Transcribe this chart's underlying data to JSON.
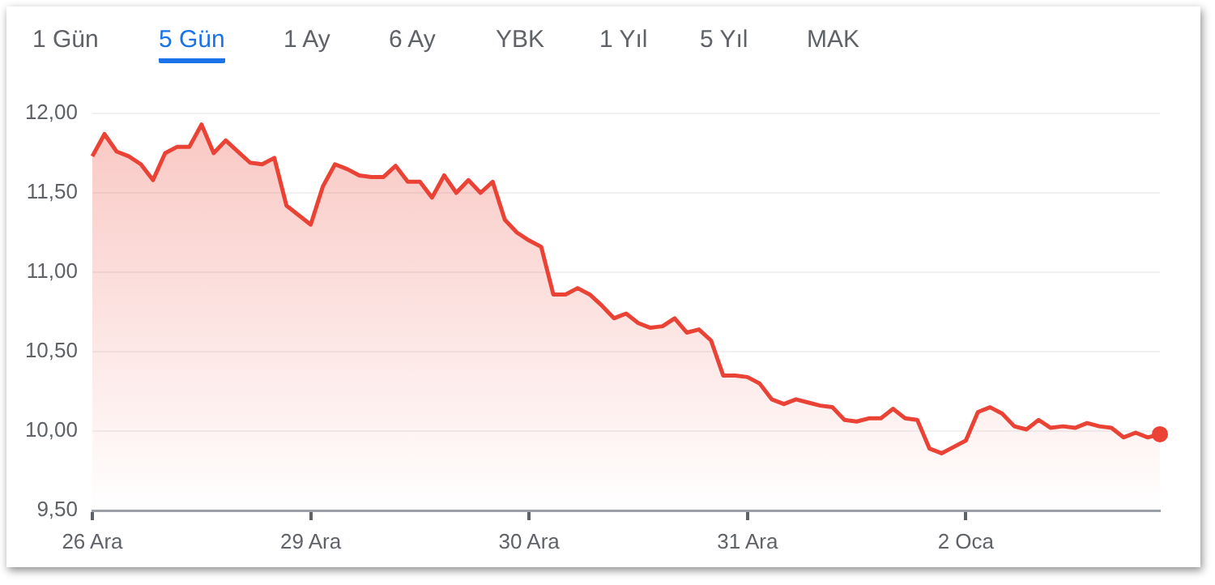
{
  "chart_data": {
    "type": "area",
    "annotations": [
      "1 Gün",
      "5 Gün",
      "1 Ay",
      "6 Ay",
      "YBK",
      "1 Yıl",
      "5 Yıl",
      "MAK"
    ],
    "categories": [
      "26 Ara",
      null,
      null,
      null,
      null,
      null,
      null,
      null,
      null,
      null,
      null,
      null,
      null,
      null,
      null,
      null,
      null,
      null,
      "29 Ara",
      null,
      null,
      null,
      null,
      null,
      null,
      null,
      null,
      null,
      null,
      null,
      null,
      null,
      null,
      null,
      null,
      null,
      "30 Ara",
      null,
      null,
      null,
      null,
      null,
      null,
      null,
      null,
      null,
      null,
      null,
      null,
      null,
      null,
      null,
      null,
      null,
      "31 Ara",
      null,
      null,
      null,
      null,
      null,
      null,
      null,
      null,
      null,
      null,
      null,
      null,
      null,
      null,
      null,
      null,
      null,
      "2 Oca",
      null,
      null,
      null,
      null,
      null,
      null,
      null,
      null,
      null,
      null,
      null,
      null,
      null,
      null,
      null,
      null
    ],
    "series": [
      {
        "color": "#ea4335",
        "values": [
          11.73,
          11.87,
          11.76,
          11.73,
          11.68,
          11.58,
          11.75,
          11.79,
          11.79,
          11.93,
          11.75,
          11.83,
          11.76,
          11.69,
          11.68,
          11.72,
          11.42,
          11.36,
          11.3,
          11.54,
          11.68,
          11.65,
          11.61,
          11.6,
          11.6,
          11.67,
          11.57,
          11.57,
          11.47,
          11.61,
          11.5,
          11.58,
          11.5,
          11.57,
          11.33,
          11.25,
          11.2,
          11.16,
          10.86,
          10.86,
          10.9,
          10.86,
          10.79,
          10.71,
          10.74,
          10.68,
          10.65,
          10.66,
          10.71,
          10.62,
          10.64,
          10.57,
          10.35,
          10.35,
          10.34,
          10.3,
          10.2,
          10.17,
          10.2,
          10.18,
          10.16,
          10.15,
          10.07,
          10.06,
          10.08,
          10.08,
          10.14,
          10.08,
          10.07,
          9.89,
          9.86,
          9.9,
          9.94,
          10.12,
          10.15,
          10.11,
          10.03,
          10.01,
          10.07,
          10.02,
          10.03,
          10.02,
          10.05,
          10.03,
          10.02,
          9.96,
          9.99,
          9.96,
          9.98
        ]
      }
    ],
    "ylim": [
      9.5,
      12
    ],
    "yticks": [
      {
        "value": 9.5,
        "label": "9,50"
      },
      {
        "value": 10,
        "label": "10,00"
      },
      {
        "value": 10.5,
        "label": "10,50"
      },
      {
        "value": 11,
        "label": "11,00"
      },
      {
        "value": 11.5,
        "label": "11,50"
      },
      {
        "value": 12,
        "label": "12,00"
      }
    ],
    "grid": "y",
    "legend": false
  }
}
